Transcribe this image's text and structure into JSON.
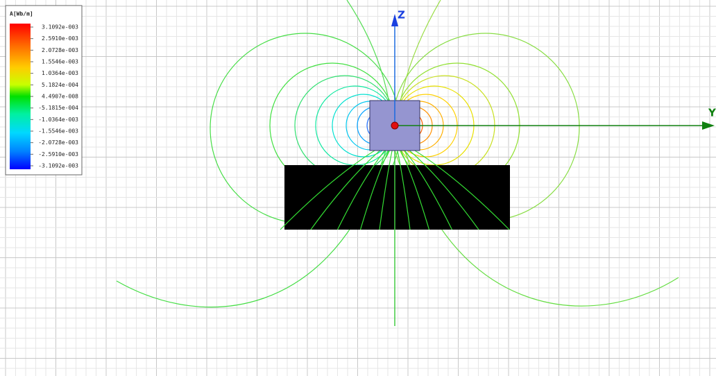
{
  "legend": {
    "title": "A[Wb/m]",
    "labels": [
      "3.1092e-003",
      "2.5910e-003",
      "2.0728e-003",
      "1.5546e-003",
      "1.0364e-003",
      "5.1824e-004",
      "4.4907e-008",
      "-5.1815e-004",
      "-1.0364e-003",
      "-1.5546e-003",
      "-2.0728e-003",
      "-2.5910e-003",
      "-3.1092e-003"
    ]
  },
  "axes": {
    "z": "Z",
    "y": "Y"
  }
}
